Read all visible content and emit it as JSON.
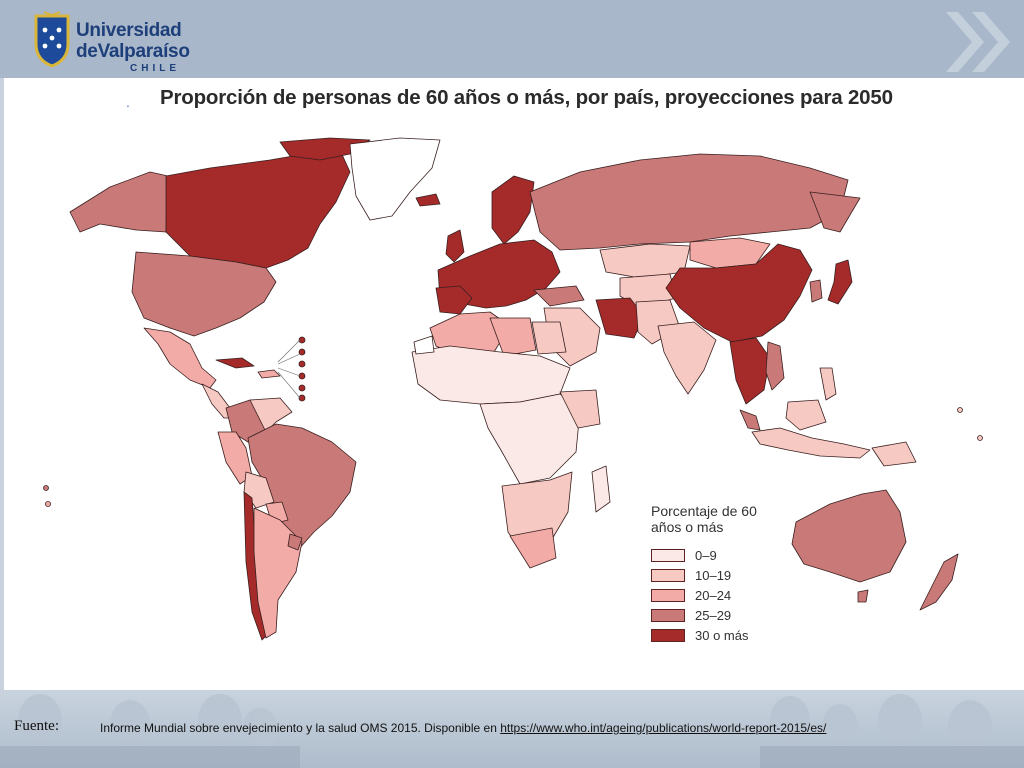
{
  "header": {
    "logo_line1": "Universidad",
    "logo_line2": "deValparaíso",
    "logo_line3": "CHILE"
  },
  "title": "Proporción de personas de 60 años o más, por país, proyecciones para 2050",
  "colors": {
    "c0": "#fbe9e7",
    "c1": "#f6c9c3",
    "c2": "#f2aba6",
    "c3": "#c97a78",
    "c4": "#a52a2a",
    "nodata": "#ffffff",
    "border": "#3a1f1f"
  },
  "legend": {
    "title": "Porcentaje de 60 años o más",
    "items": [
      {
        "label": "0–9",
        "color": "#fbe9e7"
      },
      {
        "label": "10–19",
        "color": "#f6c9c3"
      },
      {
        "label": "20–24",
        "color": "#f2aba6"
      },
      {
        "label": "25–29",
        "color": "#c97a78"
      },
      {
        "label": "30 o más",
        "color": "#a52a2a"
      }
    ]
  },
  "footer": {
    "fuente_label": "Fuente:",
    "ref_prefix": "Informe Mundial sobre envejecimiento y la salud OMS 2015. Disponible en ",
    "ref_link": "https://www.who.int/ageing/publications/world-report-2015/es/"
  }
}
